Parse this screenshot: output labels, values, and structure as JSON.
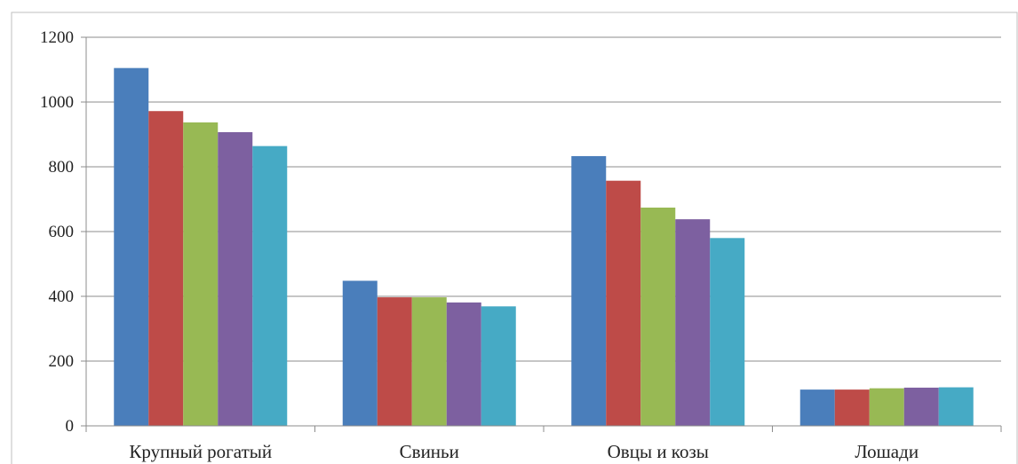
{
  "chart_data": {
    "type": "bar",
    "categories": [
      "Крупный рогатый",
      "Свиньи",
      "Овцы и козы",
      "Лошади"
    ],
    "series": [
      {
        "values": [
          1105,
          448,
          833,
          112
        ],
        "color": "#4a7ebb"
      },
      {
        "values": [
          972,
          397,
          757,
          112
        ],
        "color": "#be4b48"
      },
      {
        "values": [
          937,
          397,
          674,
          116
        ],
        "color": "#98b954"
      },
      {
        "values": [
          907,
          381,
          638,
          118
        ],
        "color": "#7d60a0"
      },
      {
        "values": [
          864,
          369,
          580,
          119
        ],
        "color": "#46aac5"
      }
    ],
    "ylim": [
      0,
      1200
    ],
    "yticks": [
      0,
      200,
      400,
      600,
      800,
      1000,
      1200
    ],
    "grid": true,
    "legend": "none"
  }
}
